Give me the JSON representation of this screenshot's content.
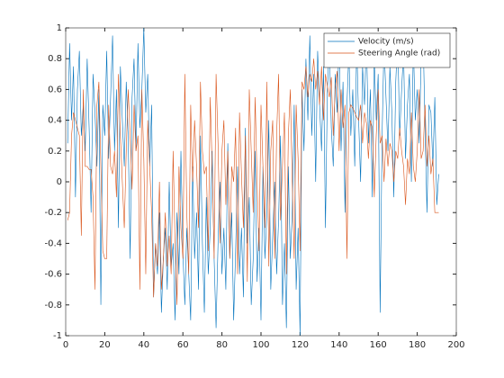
{
  "chart_data": {
    "type": "line",
    "x": [
      1,
      2,
      3,
      4,
      5,
      6,
      7,
      8,
      9,
      10,
      11,
      12,
      13,
      14,
      15,
      16,
      17,
      18,
      19,
      20,
      21,
      22,
      23,
      24,
      25,
      26,
      27,
      28,
      29,
      30,
      31,
      32,
      33,
      34,
      35,
      36,
      37,
      38,
      39,
      40,
      41,
      42,
      43,
      44,
      45,
      46,
      47,
      48,
      49,
      50,
      51,
      52,
      53,
      54,
      55,
      56,
      57,
      58,
      59,
      60,
      61,
      62,
      63,
      64,
      65,
      66,
      67,
      68,
      69,
      70,
      71,
      72,
      73,
      74,
      75,
      76,
      77,
      78,
      79,
      80,
      81,
      82,
      83,
      84,
      85,
      86,
      87,
      88,
      89,
      90,
      91,
      92,
      93,
      94,
      95,
      96,
      97,
      98,
      99,
      100,
      101,
      102,
      103,
      104,
      105,
      106,
      107,
      108,
      109,
      110,
      111,
      112,
      113,
      114,
      115,
      116,
      117,
      118,
      119,
      120,
      121,
      122,
      123,
      124,
      125,
      126,
      127,
      128,
      129,
      130,
      131,
      132,
      133,
      134,
      135,
      136,
      137,
      138,
      139,
      140,
      141,
      142,
      143,
      144,
      145,
      146,
      147,
      148,
      149,
      150,
      151,
      152,
      153,
      154,
      155,
      156,
      157,
      158,
      159,
      160,
      161,
      162,
      163,
      164,
      165,
      166,
      167,
      168,
      169,
      170,
      171,
      172,
      173,
      174,
      175,
      176,
      177,
      178,
      179,
      180,
      181,
      182,
      183,
      184,
      185,
      186,
      187,
      188,
      189,
      190,
      191
    ],
    "series": [
      {
        "name": "Velocity (m/s)",
        "color": "#0072bd",
        "values": [
          0.25,
          0.9,
          0.4,
          0.75,
          -0.1,
          0.6,
          0.85,
          0.3,
          0.5,
          0.2,
          0.8,
          0.35,
          -0.2,
          0.7,
          0.45,
          0.1,
          0.6,
          -0.8,
          0.5,
          0.3,
          0.85,
          0.15,
          0.55,
          0.95,
          0.2,
          0.6,
          -0.3,
          0.75,
          0.4,
          0.1,
          0.65,
          0.3,
          -0.5,
          0.55,
          0.8,
          0.2,
          0.9,
          0.35,
          0.6,
          1.0,
          0.45,
          0.7,
          0.1,
          0.5,
          -0.75,
          -0.4,
          -0.6,
          -0.2,
          -0.85,
          -0.5,
          -0.3,
          -0.7,
          0.0,
          -0.55,
          -0.4,
          -0.9,
          -0.2,
          -0.6,
          0.2,
          -0.45,
          -0.8,
          -0.3,
          -0.6,
          -0.9,
          0.1,
          -0.5,
          -0.2,
          -0.7,
          0.3,
          -0.4,
          -0.85,
          -0.1,
          -0.6,
          -0.3,
          0.2,
          -0.5,
          -0.95,
          -0.4,
          0.0,
          -0.6,
          -0.3,
          -0.7,
          0.25,
          -0.5,
          -0.2,
          -0.9,
          -0.45,
          0.1,
          -0.6,
          -0.3,
          -0.75,
          0.35,
          -0.4,
          -0.1,
          -0.8,
          -0.5,
          0.2,
          -0.65,
          -0.3,
          -0.9,
          0.1,
          -0.5,
          -0.2,
          0.4,
          -0.7,
          -0.35,
          0.0,
          -0.6,
          -0.25,
          0.3,
          -0.8,
          -0.4,
          -0.95,
          0.1,
          -0.5,
          -0.2,
          0.5,
          -0.7,
          -0.3,
          -1.0,
          0.6,
          0.2,
          0.8,
          0.4,
          0.95,
          0.3,
          0.7,
          0.0,
          0.85,
          0.5,
          0.2,
          0.75,
          -0.3,
          0.6,
          0.9,
          0.35,
          0.1,
          0.7,
          0.45,
          0.95,
          0.2,
          0.65,
          -0.2,
          0.5,
          0.85,
          0.3,
          0.6,
          0.1,
          0.9,
          0.4,
          0.0,
          0.75,
          0.5,
          0.95,
          0.25,
          0.6,
          -0.1,
          0.8,
          0.4,
          0.7,
          -0.85,
          0.3,
          0.9,
          0.55,
          0.2,
          0.75,
          0.45,
          -0.1,
          0.65,
          0.95,
          0.3,
          0.6,
          0.85,
          0.15,
          0.5,
          0.7,
          0.0,
          0.9,
          0.4,
          0.6,
          0.25,
          0.8,
          0.95,
          0.35,
          -0.2,
          0.5,
          0.45,
          0.1,
          0.55,
          -0.15,
          0.05
        ]
      },
      {
        "name": "Steering Angle (rad)",
        "color": "#d95319",
        "values": [
          -0.25,
          -0.2,
          0.3,
          0.45,
          0.4,
          0.35,
          0.3,
          -0.35,
          0.6,
          0.1,
          0.1,
          0.08,
          0.08,
          -0.1,
          -0.7,
          0.5,
          0.65,
          0.1,
          -0.45,
          -0.5,
          -0.5,
          0.5,
          0.1,
          0.05,
          0.2,
          -0.1,
          0.7,
          0.3,
          0.0,
          -0.3,
          0.2,
          0.6,
          0.3,
          -0.05,
          0.5,
          0.2,
          0.3,
          -0.7,
          0.6,
          0.15,
          -0.6,
          0.4,
          0.1,
          -0.2,
          -0.75,
          -0.4,
          -0.55,
          0.0,
          -0.7,
          -0.5,
          -0.2,
          -0.55,
          -0.35,
          -0.6,
          0.2,
          -0.4,
          -0.8,
          0.1,
          -0.3,
          -0.5,
          0.7,
          -0.2,
          -0.6,
          0.5,
          0.0,
          0.4,
          0.1,
          -0.3,
          0.65,
          0.2,
          0.05,
          0.1,
          -0.45,
          0.55,
          0.1,
          -0.5,
          0.7,
          0.25,
          -0.4,
          0.2,
          0.4,
          -0.15,
          0.2,
          -0.5,
          0.1,
          0.0,
          0.35,
          -0.6,
          0.45,
          0.05,
          -0.3,
          0.3,
          -0.65,
          0.6,
          0.2,
          -0.2,
          0.55,
          0.0,
          -0.45,
          0.5,
          0.1,
          -0.3,
          0.65,
          -0.55,
          0.2,
          0.4,
          -0.5,
          0.3,
          0.7,
          -0.25,
          0.1,
          0.45,
          -0.6,
          0.3,
          0.6,
          0.0,
          -0.5,
          0.5,
          0.15,
          -0.45,
          0.65,
          0.6,
          0.75,
          0.55,
          0.7,
          0.65,
          0.8,
          0.6,
          0.72,
          0.5,
          0.75,
          0.4,
          0.7,
          0.62,
          0.55,
          0.68,
          0.3,
          0.6,
          0.72,
          0.2,
          0.6,
          0.35,
          0.5,
          -0.5,
          0.45,
          0.5,
          0.48,
          0.45,
          0.42,
          0.4,
          0.5,
          0.25,
          0.45,
          0.38,
          0.15,
          0.4,
          0.35,
          -0.1,
          0.3,
          0.6,
          0.25,
          0.3,
          0.0,
          0.28,
          0.1,
          0.25,
          0.2,
          0.0,
          0.2,
          0.15,
          0.35,
          0.2,
          0.1,
          -0.15,
          0.15,
          0.05,
          0.45,
          0.1,
          0.0,
          0.2,
          0.6,
          0.15,
          0.2,
          0.5,
          0.1,
          0.3,
          0.05,
          0.15,
          -0.2,
          -0.2,
          -0.2
        ]
      }
    ],
    "xlim": [
      0,
      200
    ],
    "xticks": [
      0,
      20,
      40,
      60,
      80,
      100,
      120,
      140,
      160,
      180,
      200
    ],
    "ylim": [
      -1,
      1
    ],
    "yticks": [
      -1,
      -0.8,
      -0.6,
      -0.4,
      -0.2,
      0,
      0.2,
      0.4,
      0.6,
      0.8,
      1
    ],
    "legend": "northeast"
  }
}
